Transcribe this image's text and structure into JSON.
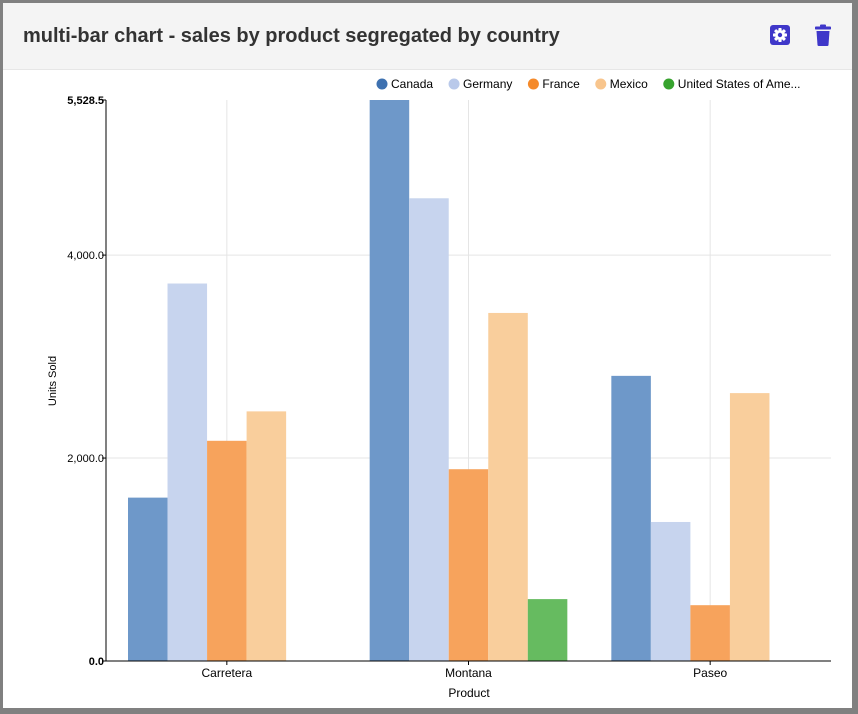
{
  "card": {
    "title": "multi-bar chart - sales by product segregated by country",
    "settings_icon": "gear-icon",
    "delete_icon": "trash-icon",
    "accent_color": "#3f37c9"
  },
  "chart_data": {
    "type": "bar",
    "title": "",
    "xlabel": "Product",
    "ylabel": "Units Sold",
    "categories": [
      "Carretera",
      "Montana",
      "Paseo"
    ],
    "ylim": [
      0,
      5528.5
    ],
    "yticks": [
      0,
      2000,
      4000,
      5528.5
    ],
    "ytick_labels": [
      "0.0",
      "2,000.0",
      "4,000.0",
      "5,528.5"
    ],
    "grid": true,
    "legend_position": "top-right",
    "series": [
      {
        "name": "Canada",
        "color": "#6e98c9",
        "legend_color": "#3e71b0",
        "values": [
          1610,
          5528.5,
          2810
        ]
      },
      {
        "name": "Germany",
        "color": "#c7d4ee",
        "legend_color": "#b9c9ea",
        "values": [
          3720,
          4560,
          1370
        ]
      },
      {
        "name": "France",
        "color": "#f7a35c",
        "legend_color": "#f58a2a",
        "values": [
          2170,
          1890,
          550
        ]
      },
      {
        "name": "Mexico",
        "color": "#f9ce9c",
        "legend_color": "#f8c58d",
        "values": [
          2460,
          3430,
          2640
        ]
      },
      {
        "name": "United States of Ame...",
        "color": "#66bb60",
        "legend_color": "#37a32e",
        "values": [
          0,
          610,
          0
        ]
      }
    ]
  }
}
